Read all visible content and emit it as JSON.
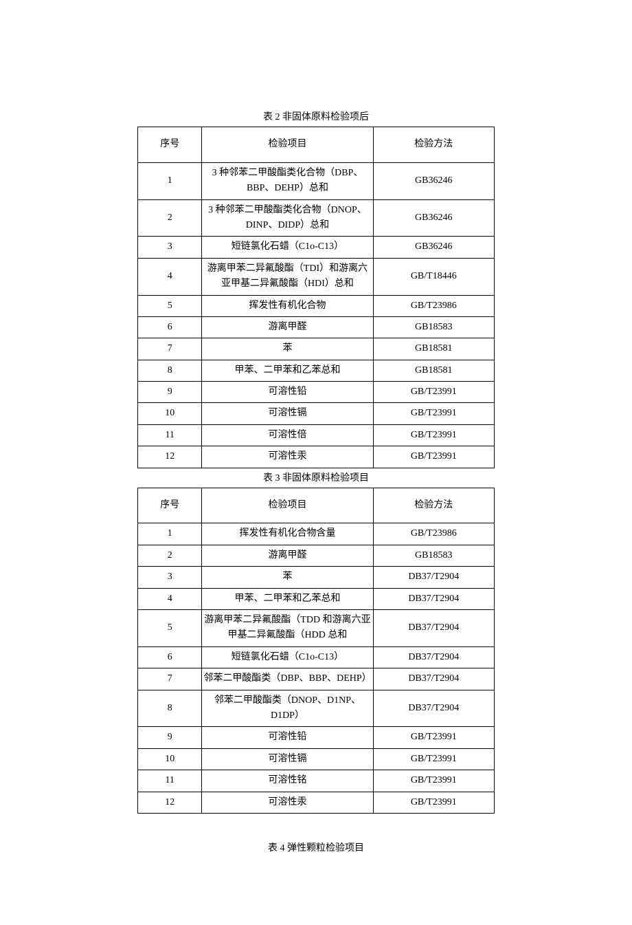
{
  "table2": {
    "title": "表 2 非固体原料检验项后",
    "headers": [
      "序号",
      "检验项目",
      "检验方法"
    ],
    "rows": [
      [
        "1",
        "3 种邻苯二甲酸酯类化合物（DBP、BBP、DEHP）总和",
        "GB36246"
      ],
      [
        "2",
        "3 种邻苯二甲酸酯类化合物（DNOP、DINP、DIDP）总和",
        "GB36246"
      ],
      [
        "3",
        "短链氯化石蜡（C1o-C13）",
        "GB36246"
      ],
      [
        "4",
        "游离甲苯二异氟酸酯（TDI）和游离六亚甲基二异氟酸酯（HDI）总和",
        "GB/T18446"
      ],
      [
        "5",
        "挥发性有机化合物",
        "GB/T23986"
      ],
      [
        "6",
        "游离甲醛",
        "GB18583"
      ],
      [
        "7",
        "苯",
        "GB18581"
      ],
      [
        "8",
        "甲苯、二甲苯和乙苯总和",
        "GB18581"
      ],
      [
        "9",
        "可溶性铅",
        "GB/T23991"
      ],
      [
        "10",
        "可溶性镉",
        "GB/T23991"
      ],
      [
        "11",
        "可溶性倍",
        "GB/T23991"
      ],
      [
        "12",
        "可溶性汞",
        "GB/T23991"
      ]
    ]
  },
  "table3": {
    "title": "表 3 非固体原料检验项目",
    "headers": [
      "序号",
      "检验项目",
      "检验方法"
    ],
    "rows": [
      [
        "1",
        "挥发性有机化合物含量",
        "GB/T23986"
      ],
      [
        "2",
        "游离甲醛",
        "GB18583"
      ],
      [
        "3",
        "苯",
        "DB37/T2904"
      ],
      [
        "4",
        "甲苯、二甲苯和乙苯总和",
        "DB37/T2904"
      ],
      [
        "5",
        "游离甲苯二异氟酸酯（TDD 和游离六亚甲基二异氟酸酯（HDD 总和",
        "DB37/T2904"
      ],
      [
        "6",
        "短链氯化石蜡（C1o-C13）",
        "DB37/T2904"
      ],
      [
        "7",
        "邻苯二甲酸酯类（DBP、BBP、DEHP）",
        "DB37/T2904"
      ],
      [
        "8",
        "邻苯二甲酸酯类（DNOP、D1NP、D1DP）",
        "DB37/T2904"
      ],
      [
        "9",
        "可溶性铅",
        "GB/T23991"
      ],
      [
        "10",
        "可溶性镉",
        "GB/T23991"
      ],
      [
        "11",
        "可溶性铭",
        "GB/T23991"
      ],
      [
        "12",
        "可溶性汞",
        "GB/T23991"
      ]
    ]
  },
  "table4": {
    "title": "表 4 弹性颗粒检验项目"
  }
}
